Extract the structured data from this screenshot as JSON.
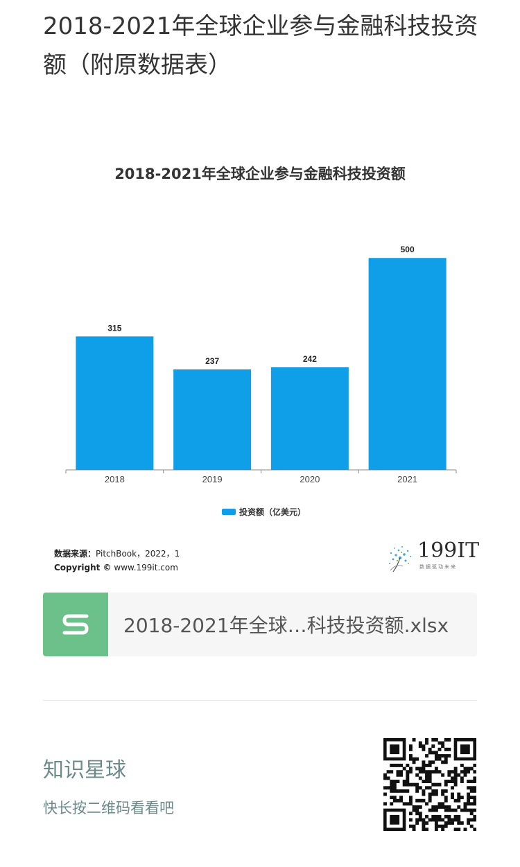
{
  "article": {
    "title": "2018-2021年全球企业参与金融科技投资额（附原数据表）"
  },
  "chart_data": {
    "type": "bar",
    "title": "2018-2021年全球企业参与金融科技投资额",
    "categories": [
      "2018",
      "2019",
      "2020",
      "2021"
    ],
    "series": [
      {
        "name": "投资额（亿美元）",
        "values": [
          315,
          237,
          242,
          500
        ],
        "color": "#0f9ee8"
      }
    ],
    "ylim": [
      0,
      520
    ],
    "xlabel": "",
    "ylabel": "",
    "grid": false,
    "legend": "bottom-center",
    "data_labels": true
  },
  "source": {
    "label": "数据来源：",
    "text": "PitchBook，2022，1",
    "copyright_label": "Copyright ©",
    "copyright_text": "www.199it.com"
  },
  "logo": {
    "text": "199IT",
    "tagline": "数据驱动未来"
  },
  "attachment": {
    "filename": "2018-2021年全球…科技投资额.xlsx",
    "icon": "spreadsheet-s-icon",
    "color": "#6cc08a"
  },
  "footer": {
    "title": "知识星球",
    "subtitle": "快长按二维码看看吧",
    "qr_icon": "qr-code"
  }
}
